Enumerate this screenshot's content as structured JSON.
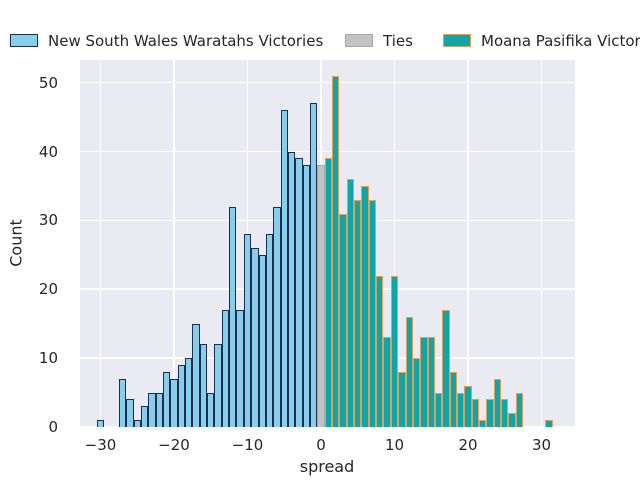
{
  "chart_data": {
    "type": "bar",
    "subtype": "histogram",
    "title": "",
    "xlabel": "spread",
    "ylabel": "Count",
    "grid": true,
    "plot_background": "#EAEAF2",
    "gridline_color": "#ffffff",
    "legend_position": "top",
    "bin_width": 1,
    "xlim": [
      -32.8,
      34.6
    ],
    "ylim": [
      0,
      53.3
    ],
    "x_ticks": [
      {
        "value": -30,
        "label": "−30"
      },
      {
        "value": -20,
        "label": "−20"
      },
      {
        "value": -10,
        "label": "−10"
      },
      {
        "value": 0,
        "label": "0"
      },
      {
        "value": 10,
        "label": "10"
      },
      {
        "value": 20,
        "label": "20"
      },
      {
        "value": 30,
        "label": "30"
      }
    ],
    "y_ticks": [
      {
        "value": 0,
        "label": "0"
      },
      {
        "value": 10,
        "label": "10"
      },
      {
        "value": 20,
        "label": "20"
      },
      {
        "value": 30,
        "label": "30"
      },
      {
        "value": 40,
        "label": "40"
      },
      {
        "value": 50,
        "label": "50"
      }
    ],
    "series": [
      {
        "name": "New South Wales Waratahs Victories",
        "fill": "#87CEEB",
        "edge": "#1F2D50",
        "bins": [
          [
            -30,
            1
          ],
          [
            -29,
            0
          ],
          [
            -28,
            0
          ],
          [
            -27,
            7
          ],
          [
            -26,
            4
          ],
          [
            -25,
            1
          ],
          [
            -24,
            3
          ],
          [
            -23,
            5
          ],
          [
            -22,
            5
          ],
          [
            -21,
            8
          ],
          [
            -20,
            7
          ],
          [
            -19,
            9
          ],
          [
            -18,
            10
          ],
          [
            -17,
            15
          ],
          [
            -16,
            12
          ],
          [
            -15,
            5
          ],
          [
            -14,
            12
          ],
          [
            -13,
            17
          ],
          [
            -12,
            32
          ],
          [
            -11,
            17
          ],
          [
            -10,
            28
          ],
          [
            -9,
            26
          ],
          [
            -8,
            25
          ],
          [
            -7,
            28
          ],
          [
            -6,
            32
          ],
          [
            -5,
            46
          ],
          [
            -4,
            40
          ],
          [
            -3,
            39
          ],
          [
            -2,
            38
          ],
          [
            -1,
            47
          ]
        ]
      },
      {
        "name": "Ties",
        "fill": "#C3C3C5",
        "edge": "#A8A8AA",
        "bins": [
          [
            0,
            38
          ]
        ]
      },
      {
        "name": "Moana Pasifika Victories",
        "fill": "#10A6A9",
        "edge": "#DDA258",
        "bins": [
          [
            1,
            39
          ],
          [
            2,
            51
          ],
          [
            3,
            31
          ],
          [
            4,
            36
          ],
          [
            5,
            33
          ],
          [
            6,
            35
          ],
          [
            7,
            33
          ],
          [
            8,
            22
          ],
          [
            9,
            13
          ],
          [
            10,
            22
          ],
          [
            11,
            8
          ],
          [
            12,
            16
          ],
          [
            13,
            10
          ],
          [
            14,
            13
          ],
          [
            15,
            13
          ],
          [
            16,
            5
          ],
          [
            17,
            17
          ],
          [
            18,
            8
          ],
          [
            19,
            5
          ],
          [
            20,
            6
          ],
          [
            21,
            4
          ],
          [
            22,
            1
          ],
          [
            23,
            4
          ],
          [
            24,
            7
          ],
          [
            25,
            4
          ],
          [
            26,
            2
          ],
          [
            27,
            5
          ],
          [
            28,
            0
          ],
          [
            29,
            0
          ],
          [
            30,
            0
          ],
          [
            31,
            1
          ]
        ]
      }
    ]
  },
  "legend": {
    "items": [
      {
        "label": "New South Wales Waratahs Victories"
      },
      {
        "label": "Ties"
      },
      {
        "label": "Moana Pasifika Victories"
      }
    ]
  }
}
